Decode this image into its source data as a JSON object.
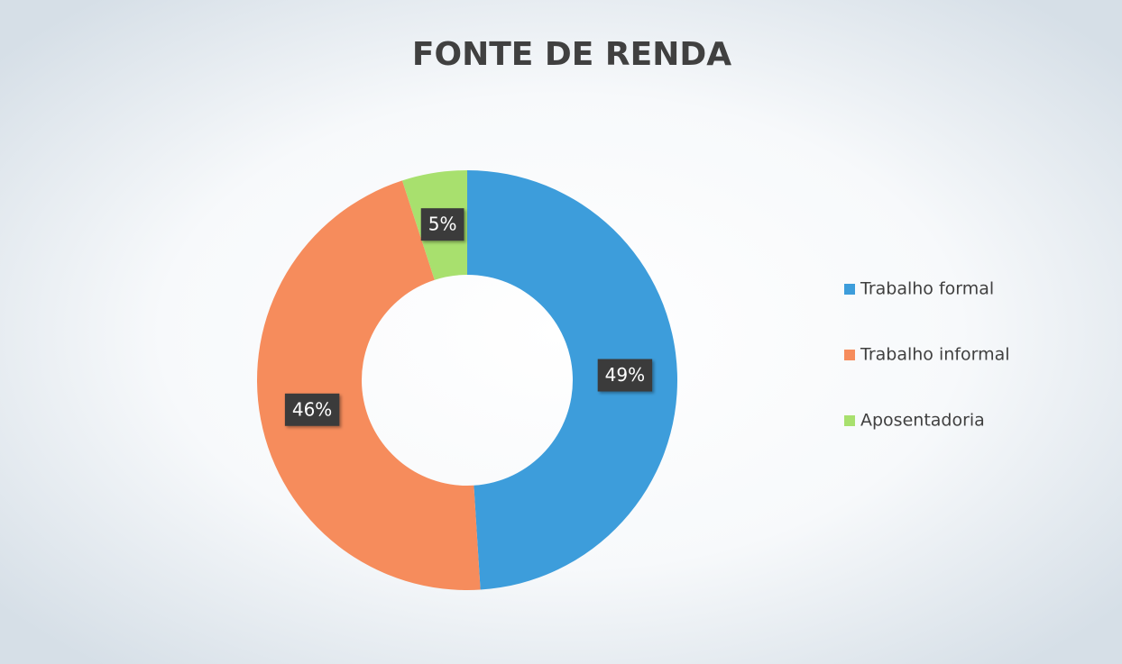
{
  "chart_data": {
    "type": "donut",
    "title": "FONTE DE RENDA",
    "categories": [
      "Trabalho formal",
      "Trabalho informal",
      "Aposentadoria"
    ],
    "values": [
      49,
      46,
      5
    ],
    "value_labels": [
      "49%",
      "46%",
      "5%"
    ],
    "colors": [
      "#3d9ddb",
      "#f68c5c",
      "#a8e06e"
    ],
    "legend": "right"
  }
}
